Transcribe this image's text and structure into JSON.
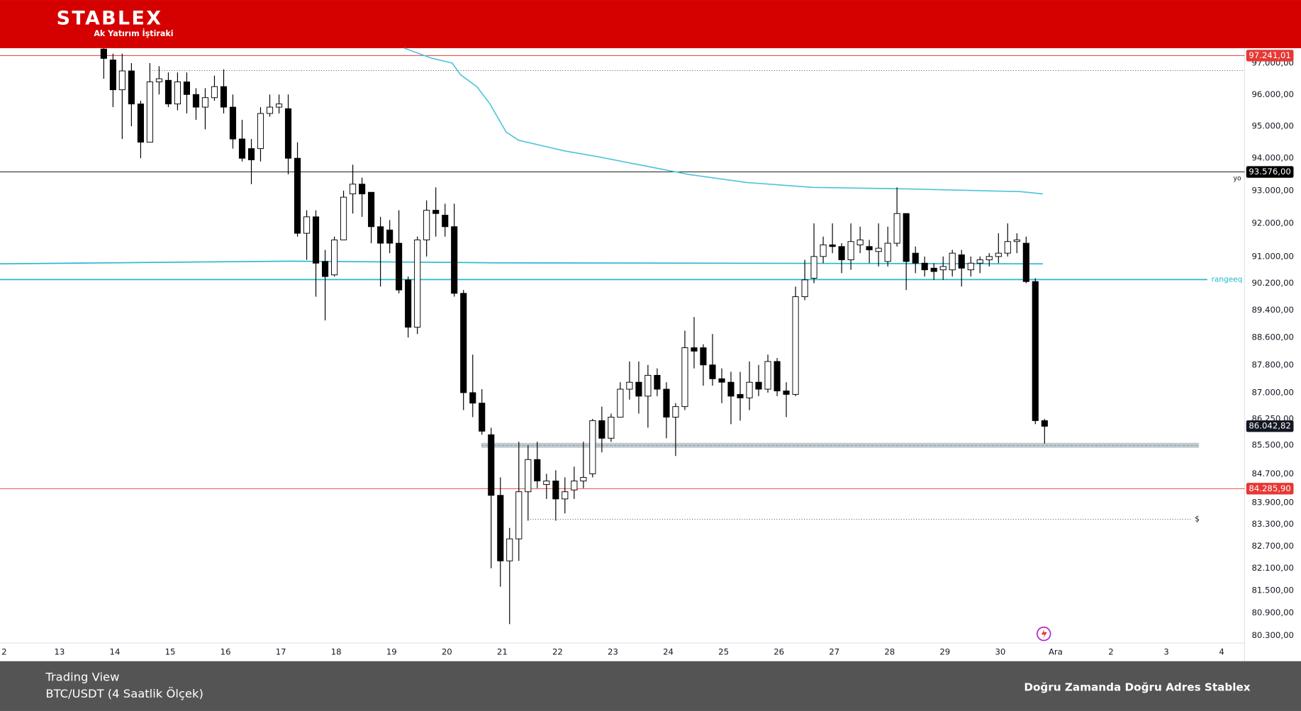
{
  "header": {
    "brand": "STABLEX",
    "tagline": "Ak Yatırım İştiraki"
  },
  "footer": {
    "source": "Trading View",
    "symbol": "BTC/USDT (4 Saatlik Ölçek)",
    "slogan": "Doğru Zamanda Doğru Adres Stablex"
  },
  "chart_data": {
    "type": "candlestick",
    "log_scale": true,
    "grid": false,
    "up_color": "#ffffff",
    "down_color": "#000000",
    "xlim": [
      11.925,
      34.414
    ],
    "ylim": [
      80100,
      97480
    ],
    "xticks": [
      {
        "value": 12,
        "label": "2"
      },
      13,
      14,
      15,
      16,
      17,
      18,
      19,
      20,
      21,
      22,
      23,
      24,
      25,
      26,
      27,
      28,
      29,
      30,
      {
        "value": 31,
        "label": "Ara"
      },
      {
        "value": 32,
        "label": "2"
      },
      {
        "value": 33,
        "label": "3"
      },
      {
        "value": 34,
        "label": "4"
      }
    ],
    "yticks": [
      {
        "value": 97000,
        "label": "97.000,00"
      },
      {
        "value": 96000,
        "label": "96.000,00"
      },
      {
        "value": 95000,
        "label": "95.000,00"
      },
      {
        "value": 94000,
        "label": "94.000,00"
      },
      {
        "value": 93000,
        "label": "93.000,00"
      },
      {
        "value": 92000,
        "label": "92.000,00"
      },
      {
        "value": 91000,
        "label": "91.000,00"
      },
      {
        "value": 90200,
        "label": "90.200,00"
      },
      {
        "value": 89400,
        "label": "89.400,00"
      },
      {
        "value": 88600,
        "label": "88.600,00"
      },
      {
        "value": 87800,
        "label": "87.800,00"
      },
      {
        "value": 87000,
        "label": "87.000,00"
      },
      {
        "value": 86250,
        "label": "86.250,00"
      },
      {
        "value": 85500,
        "label": "85.500,00"
      },
      {
        "value": 84700,
        "label": "84.700,00"
      },
      {
        "value": 83900,
        "label": "83.900,00"
      },
      {
        "value": 83300,
        "label": "83.300,00"
      },
      {
        "value": 82700,
        "label": "82.700,00"
      },
      {
        "value": 82100,
        "label": "82.100,00"
      },
      {
        "value": 81500,
        "label": "81.500,00"
      },
      {
        "value": 80900,
        "label": "80.900,00"
      },
      {
        "value": 80300,
        "label": "80.300,00"
      }
    ],
    "candles": {
      "x": [
        13.8,
        13.967,
        14.133,
        14.3,
        14.467,
        14.633,
        14.8,
        14.967,
        15.133,
        15.3,
        15.467,
        15.633,
        15.8,
        15.967,
        16.133,
        16.3,
        16.467,
        16.633,
        16.8,
        16.967,
        17.133,
        17.3,
        17.467,
        17.633,
        17.8,
        17.967,
        18.133,
        18.3,
        18.467,
        18.633,
        18.8,
        18.967,
        19.133,
        19.3,
        19.467,
        19.633,
        19.8,
        19.967,
        20.133,
        20.3,
        20.467,
        20.633,
        20.8,
        20.967,
        21.133,
        21.3,
        21.467,
        21.633,
        21.8,
        21.967,
        22.133,
        22.3,
        22.467,
        22.633,
        22.8,
        22.967,
        23.133,
        23.3,
        23.467,
        23.633,
        23.8,
        23.967,
        24.133,
        24.3,
        24.467,
        24.633,
        24.8,
        24.967,
        25.133,
        25.3,
        25.467,
        25.633,
        25.8,
        25.967,
        26.133,
        26.3,
        26.467,
        26.633,
        26.8,
        26.967,
        27.133,
        27.3,
        27.467,
        27.633,
        27.8,
        27.967,
        28.133,
        28.3,
        28.467,
        28.633,
        28.8,
        28.967,
        29.133,
        29.3,
        29.467,
        29.633,
        29.8,
        29.967,
        30.133,
        30.3,
        30.467,
        30.633,
        30.8
      ],
      "open": [
        97450,
        97100,
        96150,
        96750,
        95700,
        94500,
        96400,
        96450,
        95700,
        96400,
        96000,
        95600,
        95900,
        96250,
        95600,
        94600,
        94300,
        94300,
        95400,
        95600,
        95550,
        94000,
        91700,
        92200,
        90850,
        90450,
        91500,
        92900,
        93200,
        92950,
        91900,
        91800,
        91400,
        90300,
        88900,
        91500,
        92400,
        92250,
        91900,
        89900,
        87000,
        86700,
        85800,
        84100,
        82300,
        82900,
        84200,
        85100,
        84400,
        84500,
        84000,
        84250,
        84500,
        84700,
        86200,
        85700,
        86300,
        87100,
        87300,
        86900,
        87500,
        87100,
        86300,
        86600,
        88300,
        88300,
        87800,
        87400,
        87300,
        86950,
        86850,
        87300,
        87100,
        87900,
        87050,
        86950,
        89800,
        90350,
        91000,
        91350,
        91300,
        90900,
        91350,
        91300,
        91150,
        90850,
        91400,
        92300,
        91100,
        90800,
        90650,
        90600,
        90600,
        91050,
        90600,
        90800,
        90900,
        91000,
        91100,
        91450,
        91400,
        90250,
        86200
      ],
      "high": [
        97480,
        97300,
        97300,
        97000,
        95800,
        97000,
        96900,
        96700,
        96700,
        96700,
        96200,
        96200,
        96600,
        96800,
        96000,
        95200,
        94600,
        95600,
        96000,
        96000,
        96000,
        94500,
        92400,
        92400,
        91200,
        91600,
        93000,
        93800,
        93400,
        92950,
        92200,
        92100,
        92400,
        90400,
        91600,
        92700,
        93100,
        92600,
        92600,
        90000,
        88100,
        87100,
        86000,
        84600,
        83200,
        85600,
        85500,
        85600,
        84700,
        84800,
        84600,
        84900,
        85600,
        86250,
        86600,
        86400,
        87300,
        87900,
        87900,
        87800,
        87700,
        87300,
        86700,
        88800,
        89200,
        88400,
        88700,
        87700,
        87600,
        87600,
        87900,
        87800,
        88100,
        88000,
        87300,
        90100,
        90900,
        92000,
        91600,
        92000,
        91400,
        92000,
        91900,
        91500,
        92000,
        91900,
        93100,
        92300,
        91300,
        91000,
        90800,
        91000,
        91200,
        91200,
        91000,
        91000,
        91100,
        91700,
        92000,
        91700,
        91600,
        90350,
        86250
      ],
      "low": [
        96500,
        95600,
        94600,
        95000,
        94000,
        94500,
        96000,
        95600,
        95500,
        95400,
        95200,
        94900,
        95800,
        95400,
        94300,
        93900,
        93200,
        93900,
        95300,
        95400,
        93500,
        91600,
        90900,
        89800,
        89100,
        90400,
        91500,
        92300,
        92200,
        91400,
        90100,
        91100,
        89900,
        88600,
        88700,
        91000,
        91600,
        91600,
        89800,
        86500,
        86300,
        85800,
        82100,
        81600,
        80600,
        82300,
        83400,
        84300,
        84000,
        83400,
        83600,
        84000,
        84300,
        84600,
        85300,
        85600,
        86300,
        86800,
        86400,
        86000,
        86900,
        85700,
        85200,
        86500,
        87700,
        87200,
        87200,
        86700,
        86100,
        86200,
        86500,
        86900,
        87000,
        86900,
        86300,
        86900,
        89700,
        90200,
        90800,
        91100,
        90500,
        90600,
        91100,
        90800,
        90700,
        90700,
        91300,
        90000,
        90500,
        90400,
        90300,
        90300,
        90400,
        90100,
        90400,
        90500,
        90700,
        90800,
        91000,
        91100,
        90200,
        86100,
        85550
      ],
      "close": [
        97150,
        96150,
        96750,
        95700,
        94500,
        96400,
        96500,
        95700,
        96400,
        96000,
        95600,
        95900,
        96250,
        95600,
        94600,
        94000,
        93950,
        95400,
        95600,
        95700,
        94000,
        91700,
        92200,
        90800,
        90400,
        91500,
        92800,
        93200,
        92900,
        91900,
        91400,
        91400,
        90000,
        88900,
        91500,
        92400,
        92300,
        91900,
        89900,
        87000,
        86700,
        85900,
        84100,
        82300,
        82900,
        84200,
        85100,
        84500,
        84500,
        84000,
        84200,
        84500,
        84600,
        86200,
        85700,
        86300,
        87100,
        87300,
        86900,
        87500,
        87100,
        86300,
        86600,
        88300,
        88200,
        87800,
        87400,
        87300,
        86900,
        86850,
        87300,
        87100,
        87900,
        87050,
        86950,
        89800,
        90300,
        91000,
        91350,
        91300,
        90900,
        91450,
        91500,
        91200,
        91250,
        91400,
        92300,
        90850,
        90800,
        90600,
        90550,
        90700,
        91100,
        90650,
        90800,
        90900,
        91000,
        91100,
        91450,
        91500,
        90250,
        86200,
        86040
      ]
    },
    "lines": [
      {
        "color": "#4fc3d9",
        "x": [
          19.226,
          19.721,
          20.096,
          20.246,
          20.546,
          20.771,
          21.07,
          21.295,
          22.12,
          22.72,
          24.369,
          25.418,
          26.618,
          28.417,
          30.366,
          30.77
        ],
        "values": [
          97480,
          97160,
          97000,
          96630,
          96240,
          95720,
          94820,
          94560,
          94230,
          94050,
          93500,
          93250,
          93100,
          93050,
          92970,
          92900
        ]
      },
      {
        "color": "#26b8d0",
        "x": [
          11.925,
          17.172,
          20.921,
          30.77
        ],
        "values": [
          90780,
          90860,
          90810,
          90780
        ]
      }
    ],
    "hlines": [
      {
        "value": 97241.01,
        "label": "97.241,01",
        "color": "#e53935"
      },
      {
        "value": 93576,
        "label": "93.576,00",
        "color": "#000000",
        "note": "yo"
      },
      {
        "value": 84285.9,
        "label": "84.285,90",
        "color": "#e53935"
      }
    ],
    "range_line": {
      "value": 90310,
      "label": "rangeeq",
      "color": "#26b8d0"
    },
    "band": {
      "value": 85500,
      "x": [
        20.621,
        33.59
      ],
      "color": "#b0bec5"
    },
    "dotted_lines": [
      {
        "value": 96760,
        "x": [
          14.624,
          34.414
        ]
      },
      {
        "value": 83440,
        "x": [
          21.46,
          33.44
        ],
        "label": "$"
      }
    ],
    "last_price": {
      "value": 86042.82,
      "label": "86.042,82",
      "color": "#131722"
    }
  }
}
